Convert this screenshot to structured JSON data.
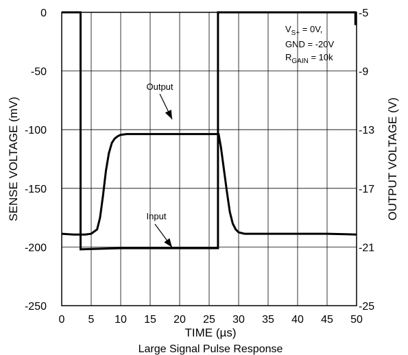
{
  "chart_data": {
    "type": "line",
    "caption": "Large Signal Pulse Response",
    "xlabel": "TIME",
    "xlabel_unit": "(µs)",
    "ylabel_left": "SENSE VOLTAGE (mV)",
    "ylabel_right": "OUTPUT VOLTAGE (V)",
    "xlim": [
      0,
      50
    ],
    "ylim_left": [
      -250,
      0
    ],
    "ylim_right": [
      -25,
      -5
    ],
    "x_ticks": [
      "0",
      "5",
      "10",
      "15",
      "20",
      "25",
      "30",
      "35",
      "40",
      "45",
      "50"
    ],
    "y_ticks_left": [
      "0",
      "-50",
      "-100",
      "-150",
      "-200",
      "-250"
    ],
    "y_ticks_right": [
      "-5",
      "-9",
      "-13",
      "-17",
      "-21",
      "-25"
    ],
    "grid": true,
    "conditions": {
      "line1_main": "V",
      "line1_sub": "S+",
      "line1_rest": " = 0V,",
      "line2": "GND = -20V",
      "line3_main": "R",
      "line3_sub": "GAIN",
      "line3_rest": " = 10k"
    },
    "annotations": {
      "output": "Output",
      "input": "Input"
    },
    "series": [
      {
        "name": "Input",
        "axis": "left",
        "x": [
          0,
          3.2,
          3.2,
          10,
          20,
          26.5,
          26.5,
          49.8,
          49.8,
          50
        ],
        "y": [
          0,
          0,
          -202,
          -201,
          -201,
          -201,
          0,
          0,
          -10,
          -10
        ]
      },
      {
        "name": "Output",
        "axis": "right",
        "x": [
          0,
          2,
          4,
          5,
          6,
          6.5,
          7,
          7.5,
          8,
          8.5,
          9,
          9.5,
          10,
          11,
          12,
          14,
          20,
          26,
          26.6,
          27,
          27.5,
          28,
          28.5,
          29,
          29.5,
          30,
          31,
          32,
          35,
          40,
          45,
          50
        ],
        "y": [
          -20.1,
          -20.15,
          -20.15,
          -20.1,
          -19.8,
          -19.0,
          -17.5,
          -15.8,
          -14.6,
          -13.9,
          -13.6,
          -13.45,
          -13.35,
          -13.3,
          -13.3,
          -13.3,
          -13.3,
          -13.3,
          -13.3,
          -14.2,
          -15.7,
          -17.2,
          -18.6,
          -19.4,
          -19.8,
          -20.0,
          -20.1,
          -20.1,
          -20.1,
          -20.1,
          -20.1,
          -20.15
        ]
      }
    ]
  }
}
